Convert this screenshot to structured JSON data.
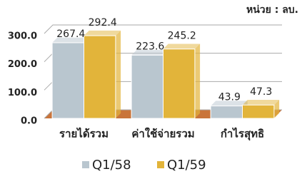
{
  "chart_data": {
    "type": "bar",
    "unit_label": "หน่วย : ลบ.",
    "categories": [
      "รายได้รวม",
      "ค่าใช้จ่ายรวม",
      "กำไรสุทธิ"
    ],
    "series": [
      {
        "name": "Q1/58",
        "color": "#b9c6cf",
        "values": [
          267.4,
          223.6,
          43.9
        ]
      },
      {
        "name": "Q1/59",
        "color": "#e2b43a",
        "values": [
          292.4,
          245.2,
          47.3
        ]
      }
    ],
    "ylim": [
      0,
      300
    ],
    "yticks": [
      {
        "value": 0,
        "label": "0.0"
      },
      {
        "value": 100,
        "label": "100.0"
      },
      {
        "value": 200,
        "label": "200.0"
      },
      {
        "value": 300,
        "label": "300.0"
      }
    ],
    "grid": true,
    "floor_color": "#c9743a"
  }
}
